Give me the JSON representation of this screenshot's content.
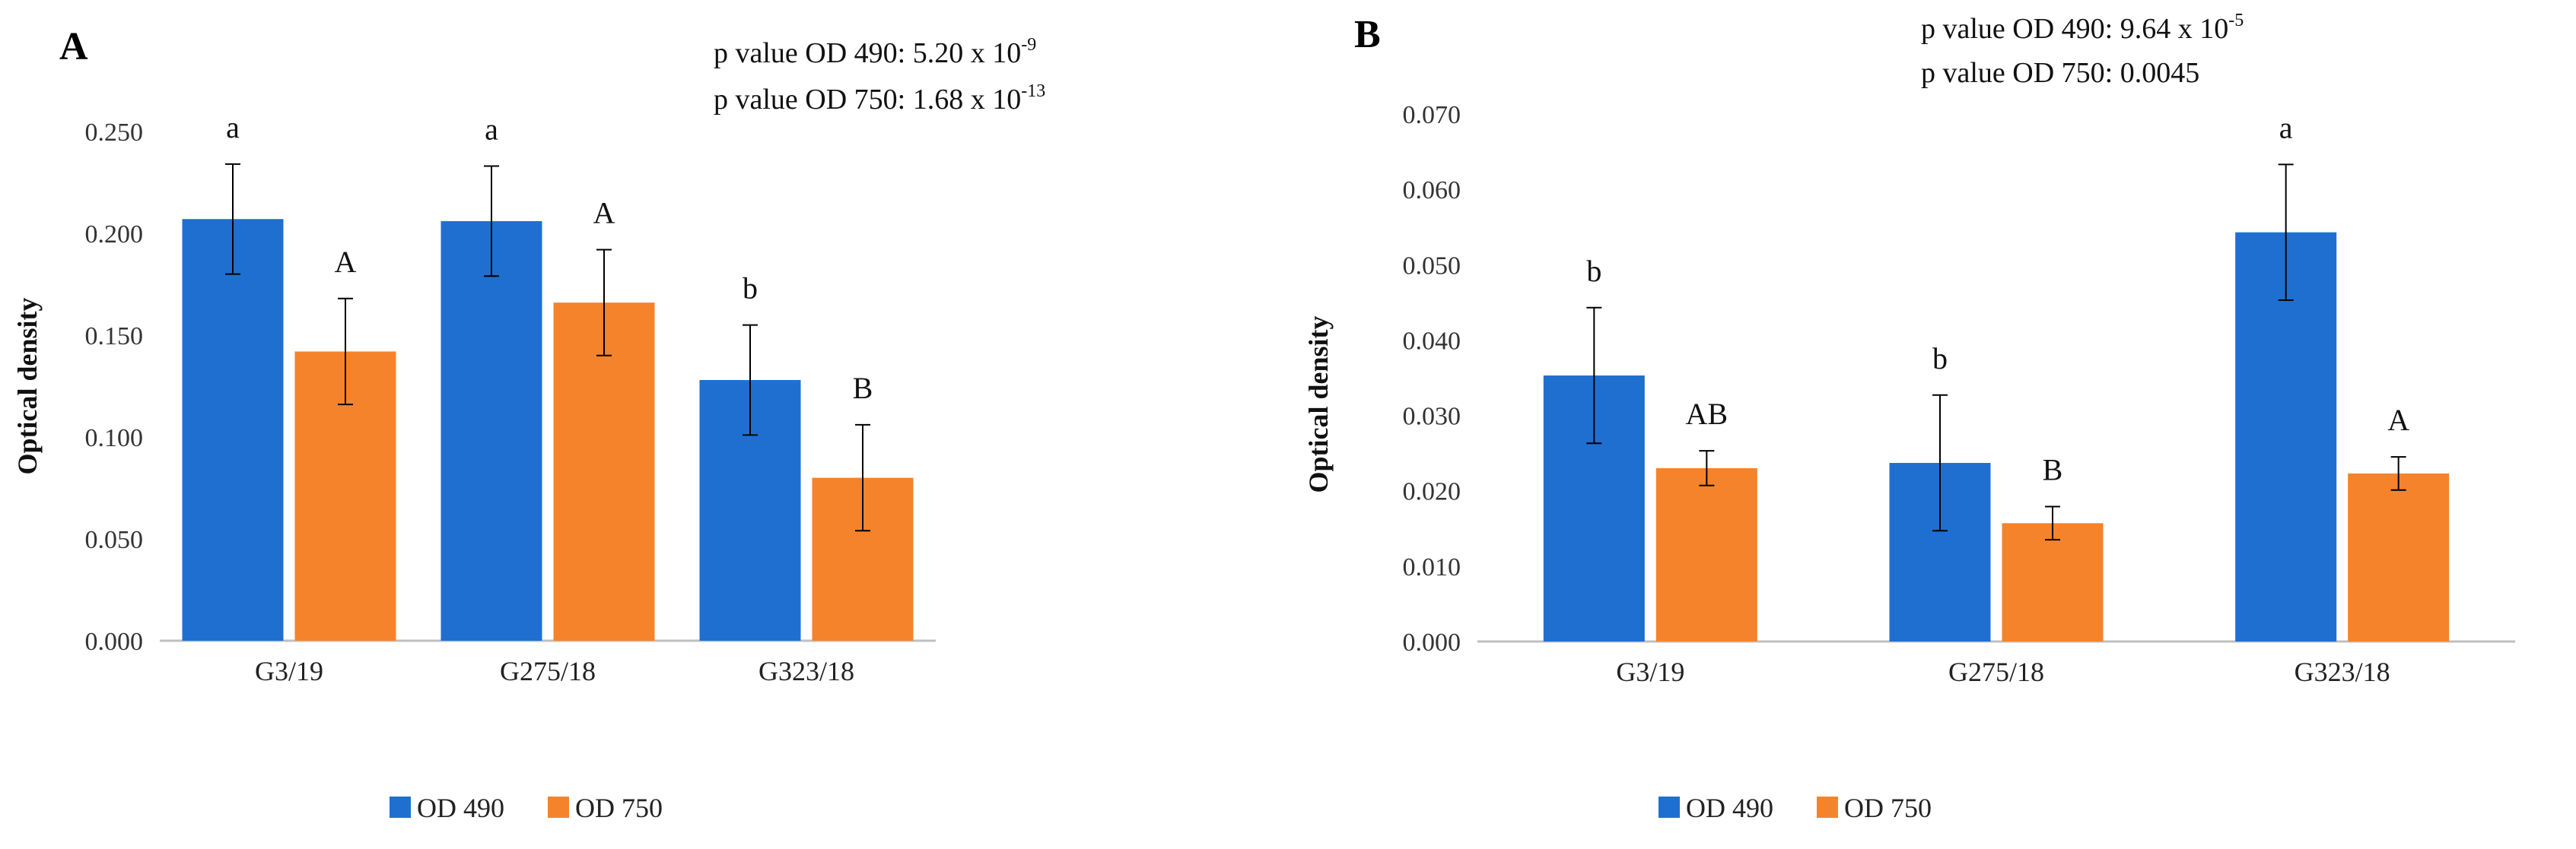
{
  "colors": {
    "od490": "#1f6fd1",
    "od750": "#f5832b",
    "axis": "#bfbfbf",
    "error": "#000000"
  },
  "chart_data": [
    {
      "type": "bar",
      "panel_label": "A",
      "ylabel": "Optical density",
      "categories": [
        "G3/19",
        "G275/18",
        "G323/18"
      ],
      "ylim": [
        0,
        0.25
      ],
      "yticks": [
        "0.000",
        "0.050",
        "0.100",
        "0.150",
        "0.200",
        "0.250"
      ],
      "series": [
        {
          "name": "OD 490",
          "values": [
            0.207,
            0.206,
            0.128
          ],
          "errors": [
            0.027,
            0.027,
            0.027
          ],
          "letters": [
            "a",
            "a",
            "b"
          ]
        },
        {
          "name": "OD 750",
          "values": [
            0.142,
            0.166,
            0.08
          ],
          "errors": [
            0.026,
            0.026,
            0.026
          ],
          "letters": [
            "A",
            "A",
            "B"
          ]
        }
      ],
      "annotations": [
        {
          "text": "p value OD 490:  5.20 x 10",
          "sup": "-9"
        },
        {
          "text": "p value OD 750: 1.68 x 10",
          "sup": "-13"
        }
      ],
      "legend": [
        "OD 490",
        "OD 750"
      ]
    },
    {
      "type": "bar",
      "panel_label": "B",
      "ylabel": "Optical density",
      "categories": [
        "G3/19",
        "G275/18",
        "G323/18"
      ],
      "ylim": [
        0,
        0.07
      ],
      "yticks": [
        "0.000",
        "0.010",
        "0.020",
        "0.030",
        "0.040",
        "0.050",
        "0.060",
        "0.070"
      ],
      "series": [
        {
          "name": "OD 490",
          "values": [
            0.0353,
            0.0237,
            0.0543
          ],
          "errors": [
            0.009,
            0.009,
            0.009
          ],
          "letters": [
            "b",
            "b",
            "a"
          ]
        },
        {
          "name": "OD 750",
          "values": [
            0.023,
            0.0157,
            0.0223
          ],
          "errors": [
            0.0023,
            0.0022,
            0.0022
          ],
          "letters": [
            "AB",
            "B",
            "A"
          ]
        }
      ],
      "annotations": [
        {
          "text": "p value OD 490:  9.64 x 10",
          "sup": "-5"
        },
        {
          "text": "p value OD 750: 0.0045",
          "sup": ""
        }
      ],
      "legend": [
        "OD 490",
        "OD 750"
      ]
    }
  ]
}
